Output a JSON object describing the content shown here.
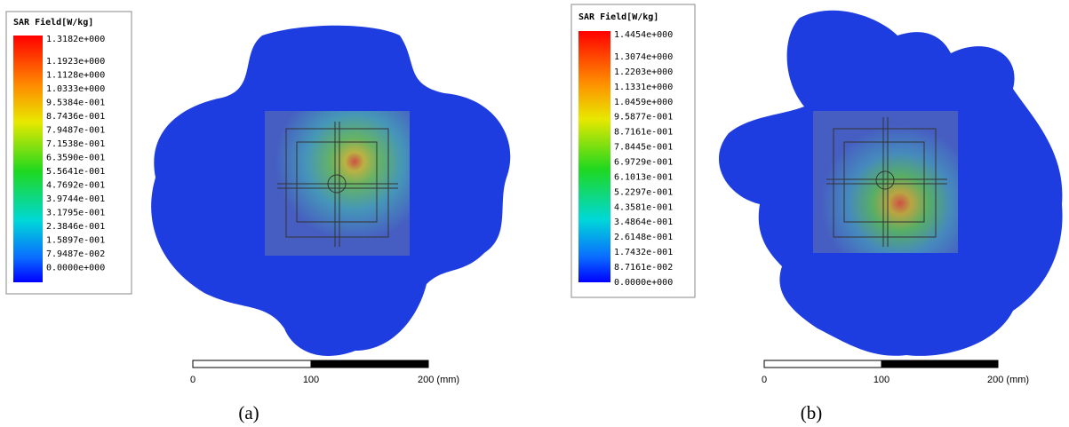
{
  "panels": [
    {
      "legend": {
        "title": "SAR Field[W/kg]",
        "labels": [
          "1.3182e+000",
          "1.1923e+000",
          "1.1128e+000",
          "1.0333e+000",
          "9.5384e-001",
          "8.7436e-001",
          "7.9487e-001",
          "7.1538e-001",
          "6.3590e-001",
          "5.5641e-001",
          "4.7692e-001",
          "3.9744e-001",
          "3.1795e-001",
          "2.3846e-001",
          "1.5897e-001",
          "7.9487e-002",
          "0.0000e+000"
        ]
      },
      "scale": {
        "labels": [
          "0",
          "100",
          "200 (mm)"
        ]
      },
      "caption": "(a)"
    },
    {
      "legend": {
        "title": "SAR Field[W/kg]",
        "labels": [
          "1.4454e+000",
          "1.3074e+000",
          "1.2203e+000",
          "1.1331e+000",
          "1.0459e+000",
          "9.5877e-001",
          "8.7161e-001",
          "7.8445e-001",
          "6.9729e-001",
          "6.1013e-001",
          "5.2297e-001",
          "4.3581e-001",
          "3.4864e-001",
          "2.6148e-001",
          "1.7432e-001",
          "8.7161e-002",
          "0.0000e+000"
        ]
      },
      "scale": {
        "labels": [
          "0",
          "100",
          "200 (mm)"
        ]
      },
      "caption": "(b)"
    }
  ]
}
